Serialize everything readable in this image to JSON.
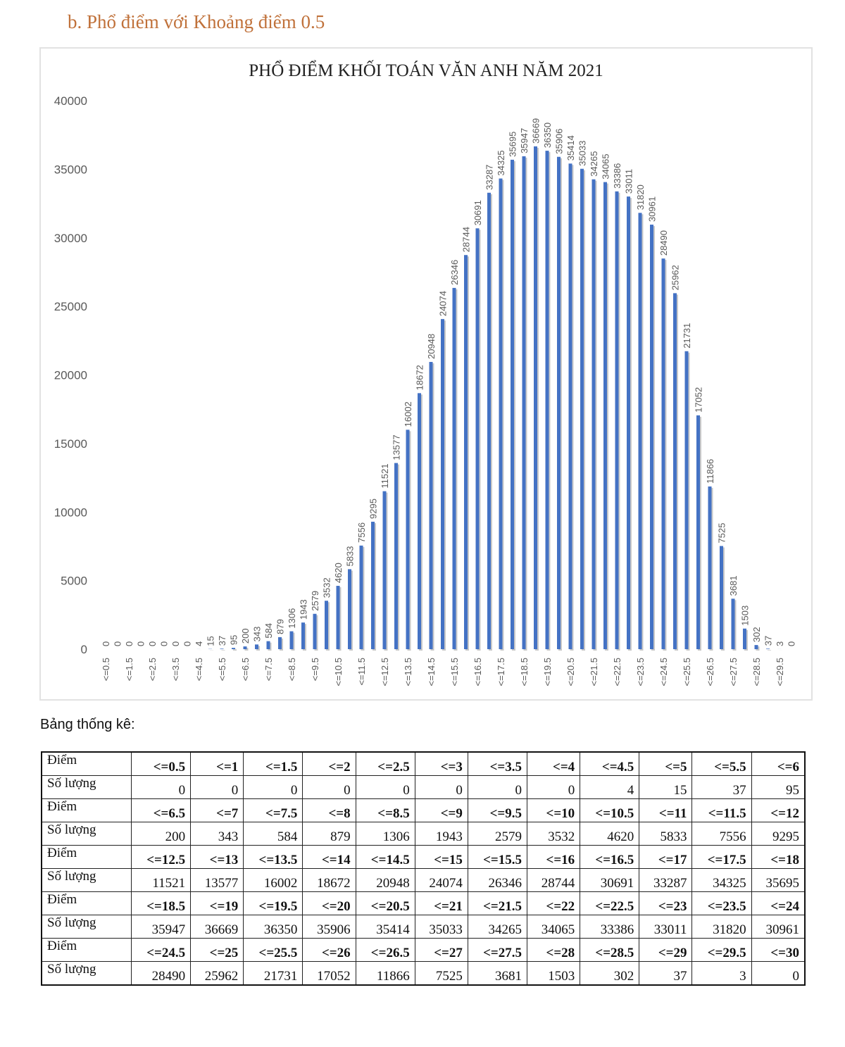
{
  "heading": "b.  Phổ điểm với Khoảng điểm 0.5",
  "stats_label": "Bảng thống kê:",
  "table": {
    "row_label_score": "Điểm",
    "row_label_count": "Số lượng"
  },
  "colors": {
    "bar": "#4472c4",
    "heading": "#c0713a"
  },
  "chart_data": {
    "type": "bar",
    "title": "PHỔ ĐIỂM KHỐI TOÁN VĂN ANH  NĂM 2021",
    "xlabel": "",
    "ylabel": "",
    "ylim": [
      0,
      40000
    ],
    "yticks": [
      0,
      5000,
      10000,
      15000,
      20000,
      25000,
      30000,
      35000,
      40000
    ],
    "grid": false,
    "categories": [
      "<=0.5",
      "<=1",
      "<=1.5",
      "<=2",
      "<=2.5",
      "<=3",
      "<=3.5",
      "<=4",
      "<=4.5",
      "<=5",
      "<=5.5",
      "<=6",
      "<=6.5",
      "<=7",
      "<=7.5",
      "<=8",
      "<=8.5",
      "<=9",
      "<=9.5",
      "<=10",
      "<=10.5",
      "<=11",
      "<=11.5",
      "<=12",
      "<=12.5",
      "<=13",
      "<=13.5",
      "<=14",
      "<=14.5",
      "<=15",
      "<=15.5",
      "<=16",
      "<=16.5",
      "<=17",
      "<=17.5",
      "<=18",
      "<=18.5",
      "<=19",
      "<=19.5",
      "<=20",
      "<=20.5",
      "<=21",
      "<=21.5",
      "<=22",
      "<=22.5",
      "<=23",
      "<=23.5",
      "<=24",
      "<=24.5",
      "<=25",
      "<=25.5",
      "<=26",
      "<=26.5",
      "<=27",
      "<=27.5",
      "<=28",
      "<=28.5",
      "<=29",
      "<=29.5",
      "<=30"
    ],
    "values": [
      0,
      0,
      0,
      0,
      0,
      0,
      0,
      0,
      4,
      15,
      37,
      95,
      200,
      343,
      584,
      879,
      1306,
      1943,
      2579,
      3532,
      4620,
      5833,
      7556,
      9295,
      11521,
      13577,
      16002,
      18672,
      20948,
      24074,
      26346,
      28744,
      30691,
      33287,
      34325,
      35695,
      35947,
      36669,
      36350,
      35906,
      35414,
      35033,
      34265,
      34065,
      33386,
      33011,
      31820,
      30961,
      28490,
      25962,
      21731,
      17052,
      11866,
      7525,
      3681,
      1503,
      302,
      37,
      3,
      0
    ]
  }
}
